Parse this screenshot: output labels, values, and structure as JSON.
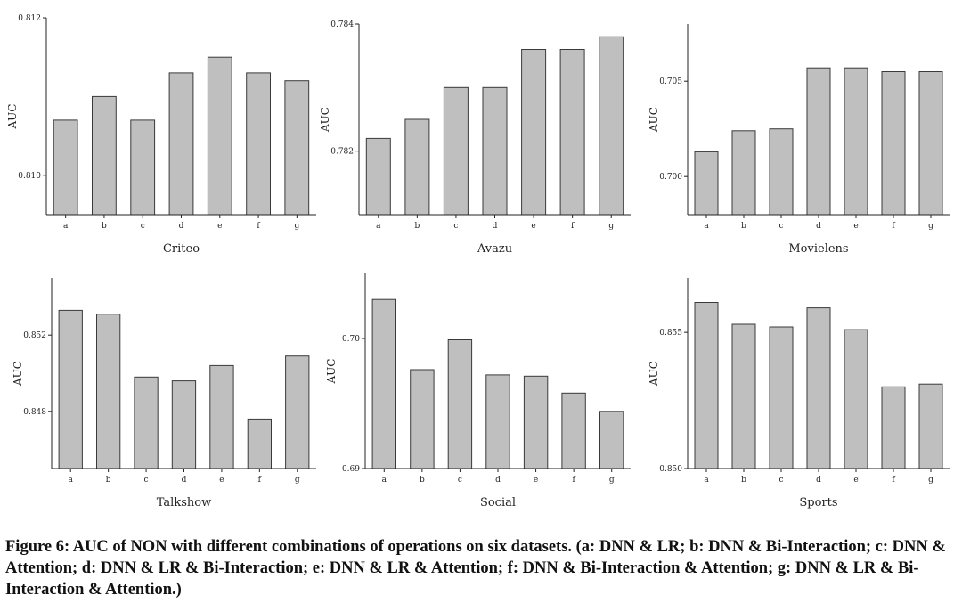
{
  "chart_data": [
    {
      "type": "bar",
      "title": "Criteo",
      "xlabel": "Criteo",
      "ylabel": "AUC",
      "categories": [
        "a",
        "b",
        "c",
        "d",
        "e",
        "f",
        "g"
      ],
      "values": [
        0.8107,
        0.811,
        0.8107,
        0.8113,
        0.8115,
        0.8113,
        0.8112
      ],
      "ylim": [
        0.8095,
        0.812
      ],
      "yticks": [
        0.81,
        0.812
      ],
      "ytick_labels": [
        "0.810",
        "0.812"
      ]
    },
    {
      "type": "bar",
      "title": "Avazu",
      "xlabel": "Avazu",
      "ylabel": "AUC",
      "categories": [
        "a",
        "b",
        "c",
        "d",
        "e",
        "f",
        "g"
      ],
      "values": [
        0.7822,
        0.7825,
        0.783,
        0.783,
        0.7836,
        0.7836,
        0.7838
      ],
      "ylim": [
        0.781,
        0.784
      ],
      "yticks": [
        0.782,
        0.784
      ],
      "ytick_labels": [
        "0.782",
        "0.784"
      ]
    },
    {
      "type": "bar",
      "title": "Movielens",
      "xlabel": "Movielens",
      "ylabel": "AUC",
      "categories": [
        "a",
        "b",
        "c",
        "d",
        "e",
        "f",
        "g"
      ],
      "values": [
        0.7013,
        0.7024,
        0.7025,
        0.7057,
        0.7057,
        0.7055,
        0.7055
      ],
      "ylim": [
        0.698,
        0.708
      ],
      "yticks": [
        0.7,
        0.705
      ],
      "ytick_labels": [
        "0.700",
        "0.705"
      ]
    },
    {
      "type": "bar",
      "title": "Talkshow",
      "xlabel": "Talkshow",
      "ylabel": "AUC",
      "categories": [
        "a",
        "b",
        "c",
        "d",
        "e",
        "f",
        "g"
      ],
      "values": [
        0.8533,
        0.8531,
        0.8498,
        0.8496,
        0.8504,
        0.8476,
        0.8509
      ],
      "ylim": [
        0.845,
        0.855
      ],
      "yticks": [
        0.848,
        0.852
      ],
      "ytick_labels": [
        "0.848",
        "0.852"
      ]
    },
    {
      "type": "bar",
      "title": "Social",
      "xlabel": "Social",
      "ylabel": "AUC",
      "categories": [
        "a",
        "b",
        "c",
        "d",
        "e",
        "f",
        "g"
      ],
      "values": [
        0.703,
        0.6976,
        0.6999,
        0.6972,
        0.6971,
        0.6958,
        0.6944
      ],
      "ylim": [
        0.69,
        0.705
      ],
      "yticks": [
        0.69,
        0.7
      ],
      "ytick_labels": [
        "0.69",
        "0.70"
      ]
    },
    {
      "type": "bar",
      "title": "Sports",
      "xlabel": "Sports",
      "ylabel": "AUC",
      "categories": [
        "a",
        "b",
        "c",
        "d",
        "e",
        "f",
        "g"
      ],
      "values": [
        0.8561,
        0.8553,
        0.8552,
        0.8559,
        0.8551,
        0.853,
        0.8531
      ],
      "ylim": [
        0.85,
        0.857
      ],
      "yticks": [
        0.85,
        0.855
      ],
      "ytick_labels": [
        "0.850",
        "0.855"
      ]
    }
  ],
  "caption": "Figure 6: AUC of NON with different combinations of operations on six datasets. (a: DNN & LR; b: DNN & Bi-Interaction; c: DNN & Attention; d: DNN & LR & Bi-Interaction; e: DNN & LR & Attention; f: DNN & Bi-Interaction & Attention; g: DNN & LR & Bi-Interaction & Attention.)",
  "colors": {
    "bar_fill": "#bfbfbf",
    "bar_stroke": "#3a3a3a",
    "axis": "#222222"
  }
}
